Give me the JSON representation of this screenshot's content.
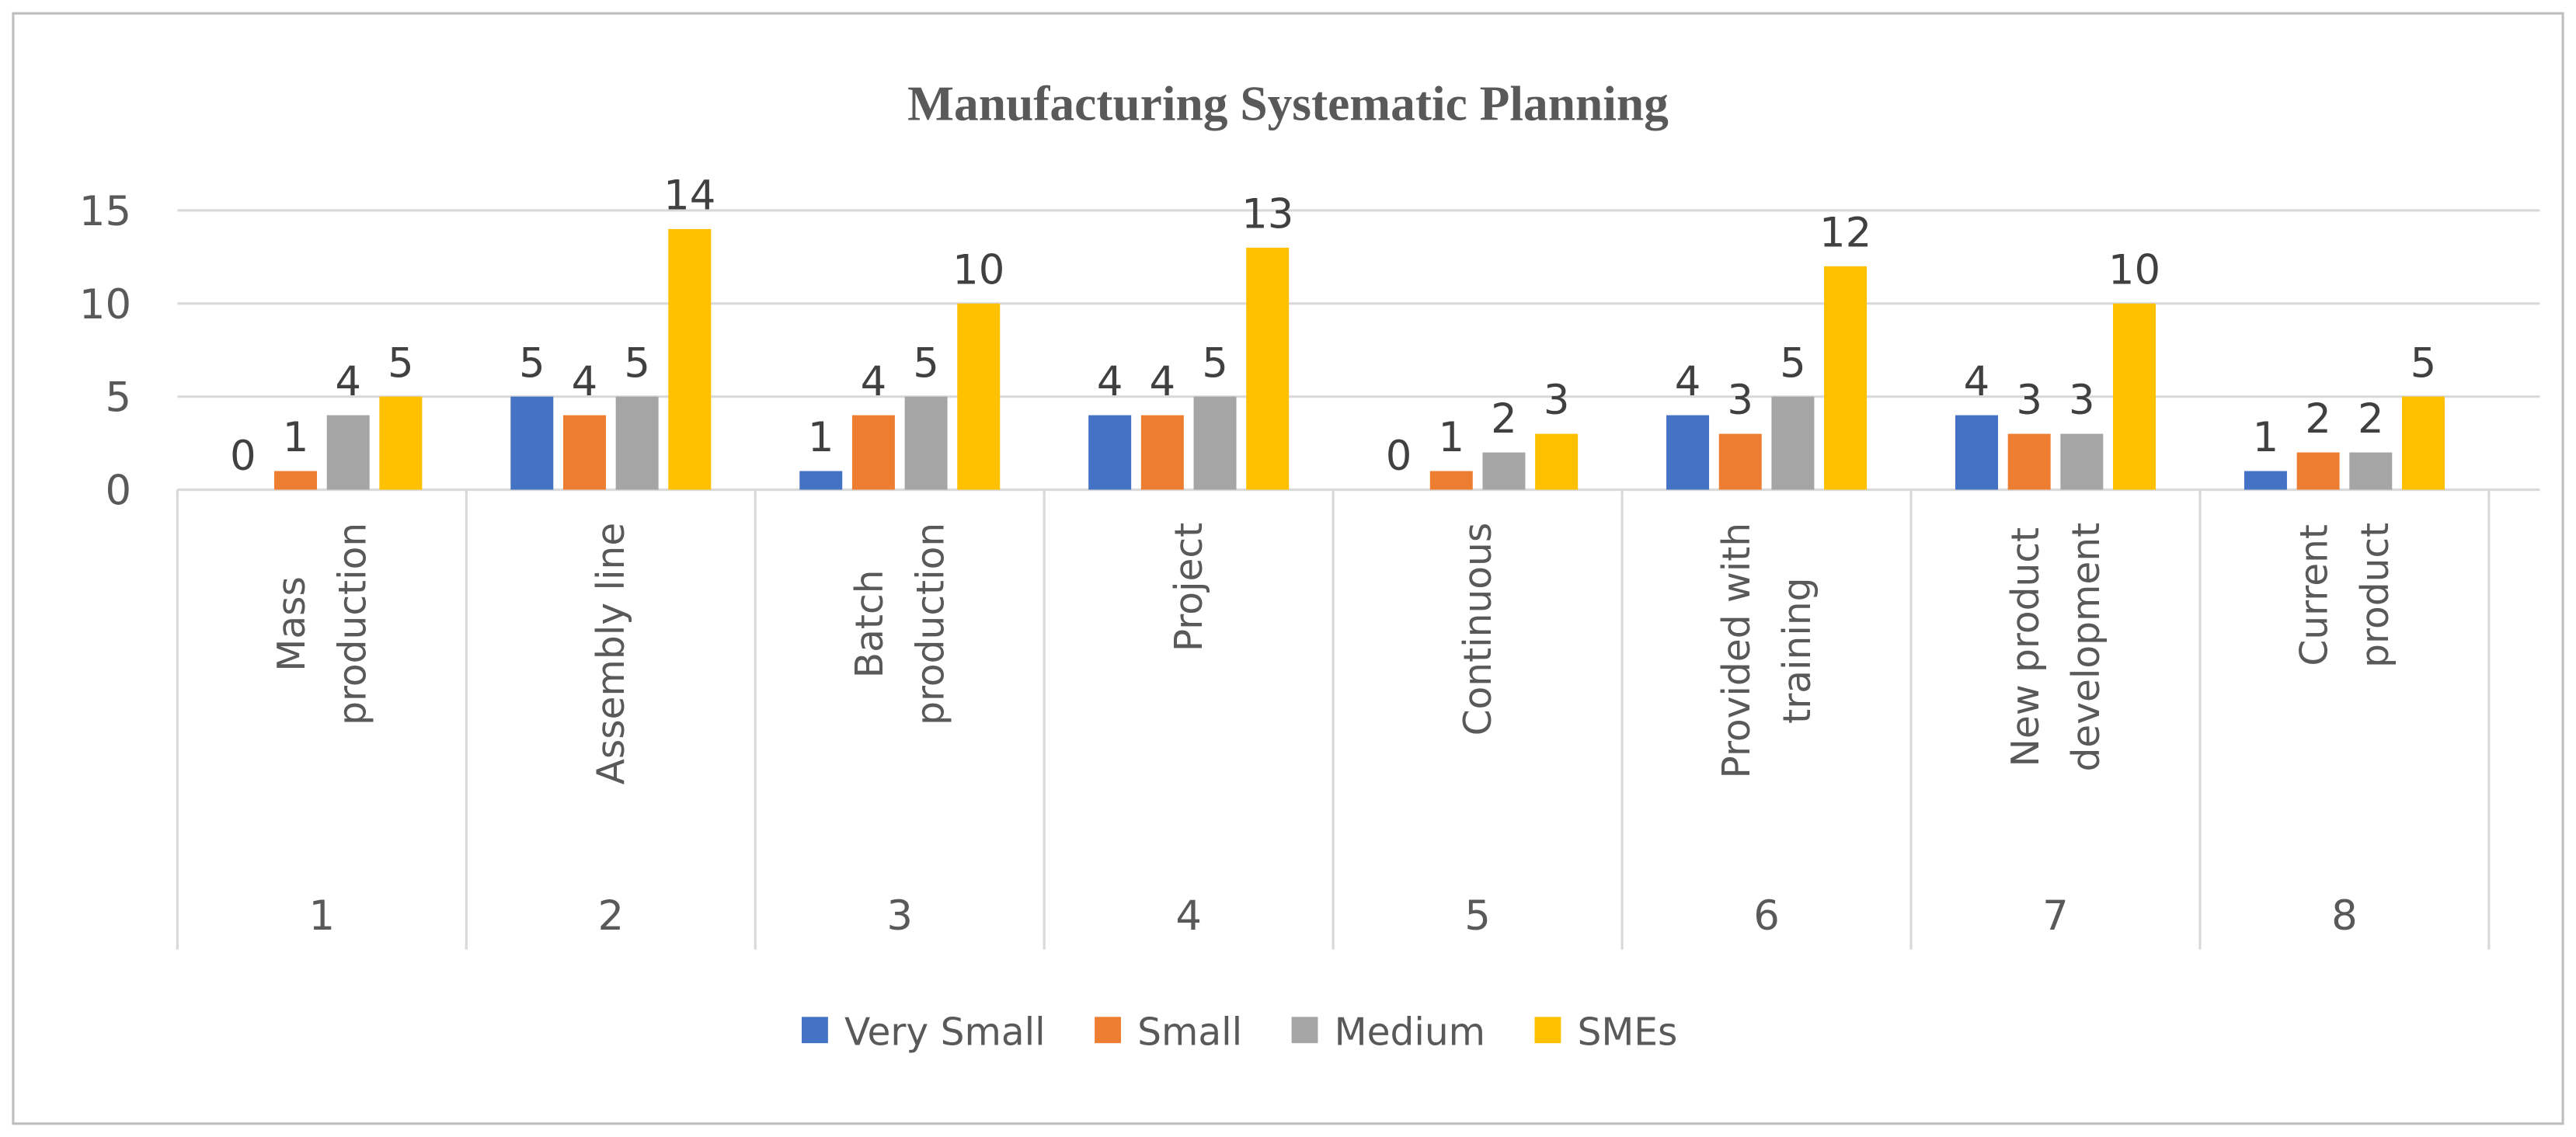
{
  "chart_data": {
    "type": "bar",
    "title": "Manufacturing Systematic Planning",
    "xlabel": "",
    "ylabel": "",
    "ylim": [
      0,
      15
    ],
    "yticks": [
      0,
      5,
      10,
      15
    ],
    "grid": true,
    "legend_position": "bottom",
    "categories": [
      "1",
      "2",
      "3",
      "4",
      "5",
      "6",
      "7",
      "8"
    ],
    "category_labels": [
      [
        "Mass",
        "production"
      ],
      [
        "Assembly line"
      ],
      [
        "Batch",
        "production"
      ],
      [
        "Project"
      ],
      [
        "Continuous"
      ],
      [
        "Provided with",
        "training"
      ],
      [
        "New product",
        "development"
      ],
      [
        "Current",
        "product"
      ]
    ],
    "series": [
      {
        "name": "Very Small",
        "color": "#4472C4",
        "values": [
          0,
          5,
          1,
          4,
          0,
          4,
          4,
          1
        ]
      },
      {
        "name": "Small",
        "color": "#ED7D31",
        "values": [
          1,
          4,
          4,
          4,
          1,
          3,
          3,
          2
        ]
      },
      {
        "name": "Medium",
        "color": "#A5A5A5",
        "values": [
          4,
          5,
          5,
          5,
          2,
          5,
          3,
          2
        ]
      },
      {
        "name": "SMEs",
        "color": "#FFC000",
        "values": [
          5,
          14,
          10,
          13,
          3,
          12,
          10,
          5
        ]
      }
    ]
  }
}
